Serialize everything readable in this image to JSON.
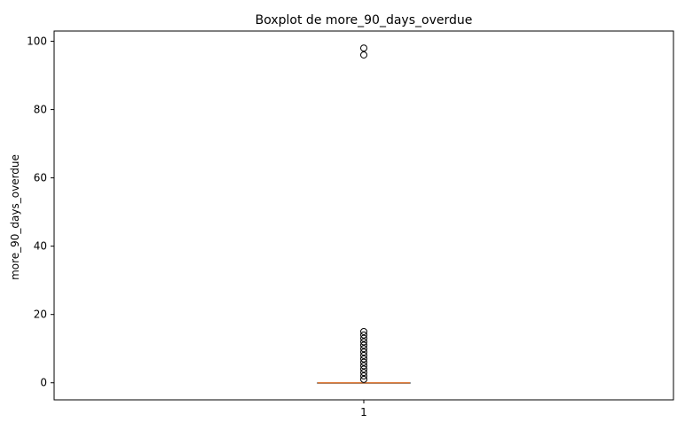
{
  "chart_data": {
    "type": "boxplot",
    "title": "Boxplot de more_90_days_overdue",
    "xlabel": "",
    "ylabel": "more_90_days_overdue",
    "categories": [
      "1"
    ],
    "ylim": [
      -5,
      103
    ],
    "yticks": [
      0,
      20,
      40,
      60,
      80,
      100
    ],
    "yticklabels": [
      "0",
      "20",
      "40",
      "60",
      "80",
      "100"
    ],
    "grid": false,
    "box": {
      "min": 0,
      "q1": 0,
      "median": 0,
      "q3": 0,
      "max": 0
    },
    "fliers": [
      1,
      2,
      3,
      4,
      5,
      6,
      7,
      8,
      9,
      10,
      11,
      12,
      13,
      14,
      15,
      96,
      98
    ],
    "colors": {
      "median": "#e07b39",
      "box": "#000000",
      "flier": "#000000"
    }
  }
}
